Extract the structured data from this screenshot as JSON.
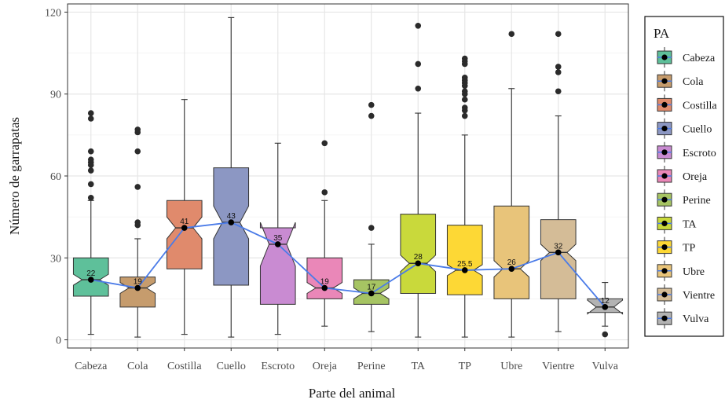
{
  "chart_data": {
    "type": "box",
    "xlabel": "Parte del animal",
    "ylabel": "Número de garrapatas",
    "ylim": [
      -3,
      123
    ],
    "yticks": [
      0,
      30,
      60,
      90,
      120
    ],
    "grid": true,
    "legend": {
      "title": "PA",
      "placement": "right",
      "entries": [
        "Cabeza",
        "Cola",
        "Costilla",
        "Cuello",
        "Escroto",
        "Oreja",
        "Perine",
        "TA",
        "TP",
        "Ubre",
        "Vientre",
        "Vulva"
      ]
    },
    "median_line_color": "#4a7be8",
    "categories": [
      {
        "name": "Cabeza",
        "color": "#5ec09a",
        "q1": 16,
        "median": 22,
        "q3": 30,
        "whisker_low": 2,
        "whisker_high": 51,
        "notch_low": 20,
        "notch_high": 24,
        "median_label": "22",
        "outliers": [
          52,
          57,
          62,
          64,
          65,
          66,
          69,
          81,
          83
        ]
      },
      {
        "name": "Cola",
        "color": "#c69c6d",
        "q1": 12,
        "median": 19,
        "q3": 23,
        "whisker_low": 1,
        "whisker_high": 37,
        "notch_low": 17,
        "notch_high": 21,
        "median_label": "19",
        "outliers": [
          42,
          43,
          56,
          69,
          76,
          77
        ]
      },
      {
        "name": "Costilla",
        "color": "#e08a6c",
        "q1": 26,
        "median": 41,
        "q3": 51,
        "whisker_low": 2,
        "whisker_high": 88,
        "notch_low": 37,
        "notch_high": 45,
        "median_label": "41",
        "outliers": []
      },
      {
        "name": "Cuello",
        "color": "#8c97c3",
        "q1": 20,
        "median": 43,
        "q3": 63,
        "whisker_low": 1,
        "whisker_high": 118,
        "notch_low": 37,
        "notch_high": 49,
        "median_label": "43",
        "outliers": []
      },
      {
        "name": "Escroto",
        "color": "#c98bd2",
        "q1": 13,
        "median": 35,
        "q3": 41,
        "whisker_low": 2,
        "whisker_high": 72,
        "notch_low": 27,
        "notch_high": 43,
        "median_label": "35",
        "outliers": []
      },
      {
        "name": "Oreja",
        "color": "#ea87b8",
        "q1": 15,
        "median": 19,
        "q3": 30,
        "whisker_low": 5,
        "whisker_high": 51,
        "notch_low": 17,
        "notch_high": 21,
        "median_label": "19",
        "outliers": [
          54,
          72
        ]
      },
      {
        "name": "Perine",
        "color": "#a6c463",
        "q1": 13,
        "median": 17,
        "q3": 22,
        "whisker_low": 3,
        "whisker_high": 35,
        "notch_low": 15,
        "notch_high": 19,
        "median_label": "17",
        "outliers": [
          41,
          82,
          86
        ]
      },
      {
        "name": "TA",
        "color": "#c9d93b",
        "q1": 17,
        "median": 28,
        "q3": 46,
        "whisker_low": 1,
        "whisker_high": 83,
        "notch_low": 25,
        "notch_high": 31,
        "median_label": "28",
        "outliers": [
          92,
          101,
          115
        ]
      },
      {
        "name": "TP",
        "color": "#fdd835",
        "q1": 16.5,
        "median": 25.5,
        "q3": 42,
        "whisker_low": 1,
        "whisker_high": 75,
        "notch_low": 23.5,
        "notch_high": 27.5,
        "median_label": "25.5",
        "outliers": [
          82,
          84,
          85,
          88,
          90,
          91,
          93,
          94,
          95,
          96,
          101,
          102,
          103
        ]
      },
      {
        "name": "Ubre",
        "color": "#e8c47a",
        "q1": 15,
        "median": 26,
        "q3": 49,
        "whisker_low": 1,
        "whisker_high": 92,
        "notch_low": 23,
        "notch_high": 29,
        "median_label": "26",
        "outliers": [
          112
        ]
      },
      {
        "name": "Vientre",
        "color": "#d4bc97",
        "q1": 15,
        "median": 32,
        "q3": 44,
        "whisker_low": 3,
        "whisker_high": 82,
        "notch_low": 29,
        "notch_high": 35,
        "median_label": "32",
        "outliers": [
          91,
          98,
          100,
          112
        ]
      },
      {
        "name": "Vulva",
        "color": "#b3b3b3",
        "q1": 10,
        "median": 12,
        "q3": 15,
        "whisker_low": 5,
        "whisker_high": 21,
        "notch_low": 9.5,
        "notch_high": 14.5,
        "median_label": "12",
        "outliers": [
          2
        ]
      }
    ]
  }
}
